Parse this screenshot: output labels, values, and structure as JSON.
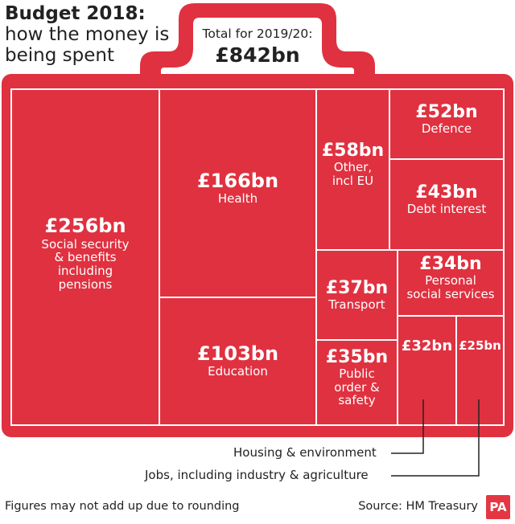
{
  "header": {
    "title": "Budget 2018:",
    "subtitle_line1": "how the money is",
    "subtitle_line2": "being spent"
  },
  "total": {
    "label": "Total for 2019/20:",
    "value": "£842bn"
  },
  "colors": {
    "accent": "#e03140",
    "tile_border": "#ffffff",
    "text_dark": "#222222"
  },
  "chart_data": {
    "type": "treemap",
    "title": "Budget 2018: how the money is being spent",
    "total_label": "Total for 2019/20:",
    "total_value_bn": 842,
    "unit": "£bn",
    "items": [
      {
        "name": "Social security & benefits including pensions",
        "value": 256,
        "value_label": "£256bn",
        "label": "Social security\n& benefits\nincluding\npensions"
      },
      {
        "name": "Health",
        "value": 166,
        "value_label": "£166bn",
        "label": "Health"
      },
      {
        "name": "Education",
        "value": 103,
        "value_label": "£103bn",
        "label": "Education"
      },
      {
        "name": "Other, incl EU",
        "value": 58,
        "value_label": "£58bn",
        "label": "Other,\nincl EU"
      },
      {
        "name": "Defence",
        "value": 52,
        "value_label": "£52bn",
        "label": "Defence"
      },
      {
        "name": "Debt interest",
        "value": 43,
        "value_label": "£43bn",
        "label": "Debt interest"
      },
      {
        "name": "Transport",
        "value": 37,
        "value_label": "£37bn",
        "label": "Transport"
      },
      {
        "name": "Public order & safety",
        "value": 35,
        "value_label": "£35bn",
        "label": "Public\norder &\nsafety"
      },
      {
        "name": "Personal social services",
        "value": 34,
        "value_label": "£34bn",
        "label": "Personal\nsocial services"
      },
      {
        "name": "Housing & environment",
        "value": 32,
        "value_label": "£32bn",
        "label": ""
      },
      {
        "name": "Jobs, including industry & agriculture",
        "value": 25,
        "value_label": "£25bn",
        "label": ""
      }
    ],
    "callouts": [
      {
        "target": "Housing & environment",
        "text": "Housing & environment"
      },
      {
        "target": "Jobs, including industry & agriculture",
        "text": "Jobs, including industry & agriculture"
      }
    ]
  },
  "footer": {
    "note": "Figures may not add up due to rounding",
    "source": "Source: HM Treasury",
    "logo": "PA"
  }
}
